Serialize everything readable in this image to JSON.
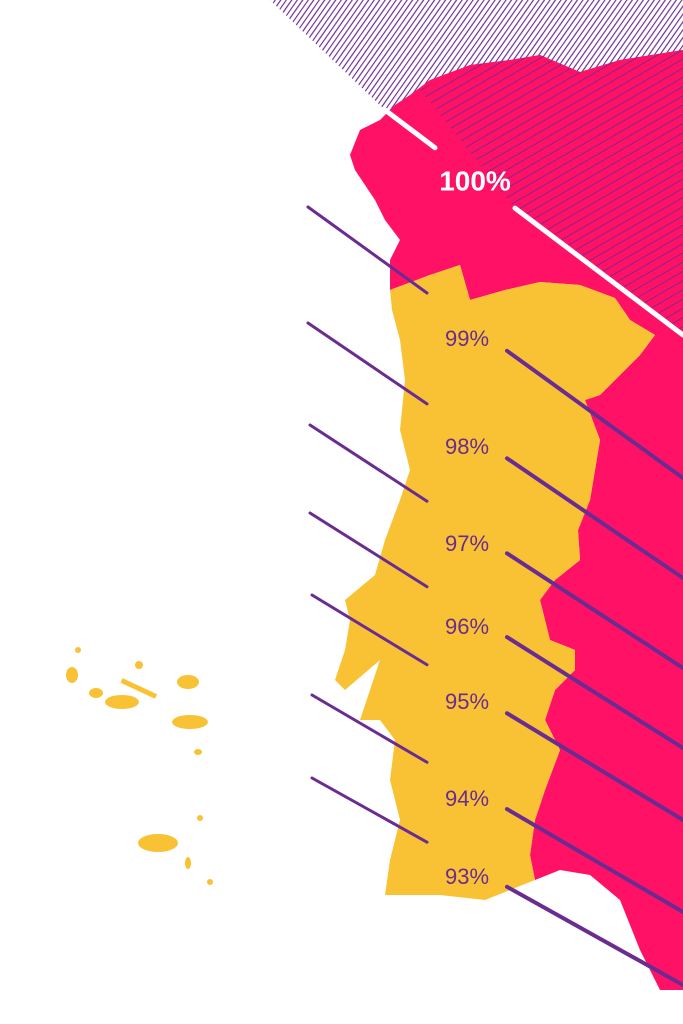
{
  "labels": [
    {
      "text": "100%"
    },
    {
      "text": "99%"
    },
    {
      "text": "98%"
    },
    {
      "text": "97%"
    },
    {
      "text": "96%"
    },
    {
      "text": "95%"
    },
    {
      "text": "94%"
    },
    {
      "text": "93%"
    }
  ]
}
